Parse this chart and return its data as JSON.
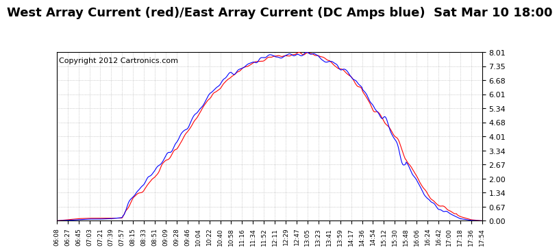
{
  "title": "West Array Current (red)/East Array Current (DC Amps blue)  Sat Mar 10 18:00",
  "copyright": "Copyright 2012 Cartronics.com",
  "yticks": [
    0.0,
    0.67,
    1.34,
    2.0,
    2.67,
    3.34,
    4.01,
    4.68,
    5.34,
    6.01,
    6.68,
    7.35,
    8.01
  ],
  "ymin": 0.0,
  "ymax": 8.01,
  "background_color": "#ffffff",
  "grid_color": "#aaaaaa",
  "line_color_red": "#ff0000",
  "line_color_blue": "#0000ff",
  "title_fontsize": 13,
  "copyright_fontsize": 8,
  "x_tick_labels": [
    "06:08",
    "06:27",
    "06:45",
    "07:03",
    "07:21",
    "07:39",
    "07:57",
    "08:15",
    "08:33",
    "08:51",
    "09:09",
    "09:28",
    "09:46",
    "10:04",
    "10:22",
    "10:40",
    "10:58",
    "11:16",
    "11:34",
    "11:52",
    "12:11",
    "12:29",
    "12:47",
    "13:05",
    "13:23",
    "13:41",
    "13:59",
    "14:17",
    "14:36",
    "14:54",
    "15:12",
    "15:30",
    "15:48",
    "16:06",
    "16:24",
    "16:42",
    "17:00",
    "17:18",
    "17:36",
    "17:54"
  ]
}
